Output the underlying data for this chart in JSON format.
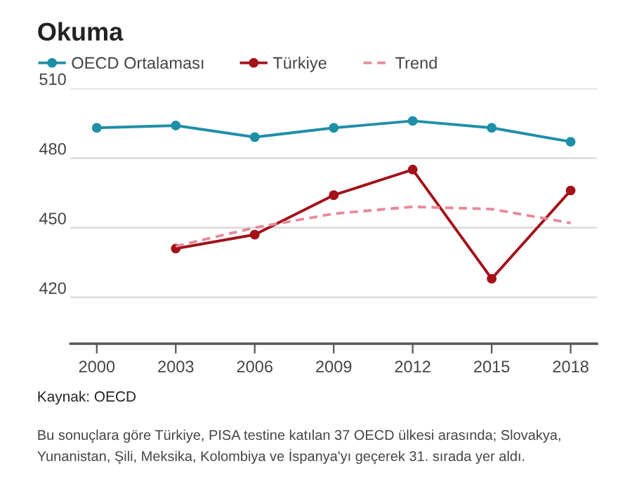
{
  "chart_data": {
    "type": "line",
    "title": "Okuma",
    "x": [
      2000,
      2003,
      2006,
      2009,
      2012,
      2015,
      2018
    ],
    "series": [
      {
        "name": "OECD Ortalaması",
        "color": "#1f8fa8",
        "marker": "circle",
        "line_style": "solid",
        "values": [
          493,
          494,
          489,
          493,
          496,
          493,
          487
        ]
      },
      {
        "name": "Türkiye",
        "color": "#a3111a",
        "marker": "circle",
        "line_style": "solid",
        "values": [
          null,
          441,
          447,
          464,
          475,
          428,
          466
        ]
      },
      {
        "name": "Trend",
        "color": "#e8899a",
        "marker": "none",
        "line_style": "dashed",
        "values": [
          null,
          442,
          450,
          456,
          459,
          458,
          452
        ]
      }
    ],
    "xlim": [
      1999,
      2019
    ],
    "xticks": [
      2000,
      2003,
      2006,
      2009,
      2012,
      2015,
      2018
    ],
    "ylim": [
      400,
      510
    ],
    "yticks": [
      420,
      450,
      480,
      510
    ],
    "grid": "y",
    "legend": "top left",
    "annotations": [
      "Kaynak: OECD",
      "Bu sonuçlara göre Türkiye, PISA testine katılan 37 OECD ülkesi arasında; Slovakya, Yunanistan, Şili, Meksika, Kolombiya ve İspanya'yı geçerek 31. sırada yer aldı."
    ]
  }
}
